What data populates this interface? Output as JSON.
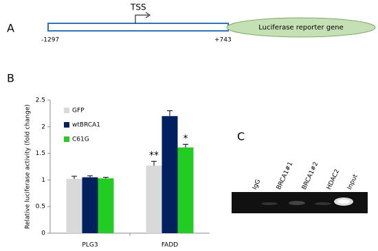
{
  "panel_a": {
    "label": "A",
    "tss": "TSS",
    "start": "-1297",
    "end": "+743",
    "reporter": "Luciferase reporter gene"
  },
  "chart_data": {
    "type": "bar",
    "panel_label": "B",
    "y_label": "Relative luciferase activity (fold change)",
    "categories": [
      "PLG3",
      "FADD"
    ],
    "series": [
      {
        "name": "GFP",
        "color": "#d9d9d9",
        "values": [
          1.02,
          1.27
        ],
        "errors": [
          0.05,
          0.08
        ],
        "significance": [
          null,
          "**"
        ]
      },
      {
        "name": "wtBRCA1",
        "color": "#002060",
        "values": [
          1.05,
          2.2
        ],
        "errors": [
          0.03,
          0.1
        ],
        "significance": [
          null,
          null
        ]
      },
      {
        "name": "C61G",
        "color": "#22cc22",
        "values": [
          1.03,
          1.61
        ],
        "errors": [
          0.02,
          0.06
        ],
        "significance": [
          null,
          "*"
        ]
      }
    ],
    "ylim": [
      0,
      2.5
    ],
    "yticks": [
      0,
      0.5,
      1,
      1.5,
      2,
      2.5
    ],
    "legend": "top-left"
  },
  "panel_c": {
    "label": "C",
    "lanes": [
      "IgG",
      "BRCA1#1",
      "BRCA1#2",
      "HDAC2",
      "Input"
    ]
  }
}
